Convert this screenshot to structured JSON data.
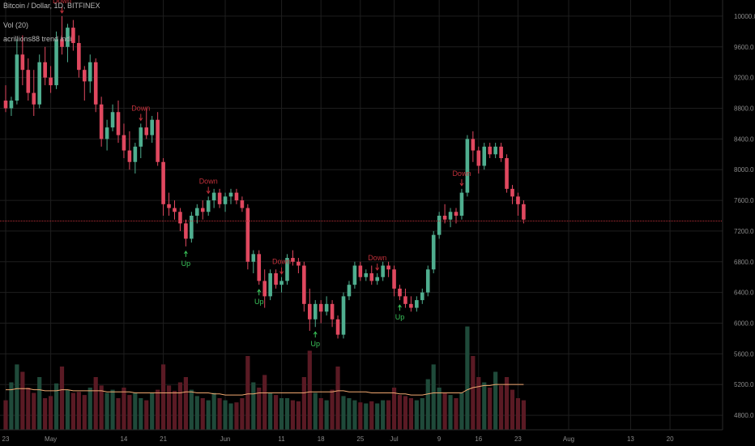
{
  "header": {
    "title": "Bitcoin / Dollar, 1D, BITFINEX",
    "vol_label": "Vol (20)",
    "indicator_label": "acrillions88 trend indi"
  },
  "colors": {
    "background": "#000000",
    "grid": "#1e1e1e",
    "up": "#4fae8f",
    "down": "#e0485f",
    "up_volume": "#1f4a3a",
    "down_volume": "#5a1a24",
    "vol_ma": "#f0a870",
    "price_line": "#c0303a",
    "signal_down": "#c0303a",
    "signal_up": "#3ac35a"
  },
  "chart_data": {
    "type": "candlestick",
    "symbol": "Bitcoin / Dollar",
    "interval": "1D",
    "exchange": "BITFINEX",
    "ylim": [
      4600,
      10200
    ],
    "y_ticks": [
      "10000.0",
      "9600.0",
      "9200.0",
      "8800.0",
      "8400.0",
      "8000.0",
      "7600.0",
      "7200.0",
      "6800.0",
      "6400.0",
      "6000.0",
      "5600.0",
      "5200.0",
      "4800.0"
    ],
    "x_ticks": [
      {
        "label": "23",
        "index": 0
      },
      {
        "label": "May",
        "index": 8
      },
      {
        "label": "14",
        "index": 21
      },
      {
        "label": "21",
        "index": 28
      },
      {
        "label": "Jun",
        "index": 39
      },
      {
        "label": "11",
        "index": 49
      },
      {
        "label": "18",
        "index": 56
      },
      {
        "label": "25",
        "index": 63
      },
      {
        "label": "Jul",
        "index": 69
      },
      {
        "label": "9",
        "index": 77
      },
      {
        "label": "16",
        "index": 84
      },
      {
        "label": "23",
        "index": 91
      },
      {
        "label": "Aug",
        "index": 100
      },
      {
        "label": "13",
        "index": 111
      },
      {
        "label": "20",
        "index": 118
      }
    ],
    "current_price_line": 7330,
    "candles": [
      [
        8900,
        9100,
        8750,
        8800
      ],
      [
        8800,
        8950,
        8700,
        8900
      ],
      [
        8900,
        9700,
        8850,
        9500
      ],
      [
        9500,
        9750,
        9100,
        9300
      ],
      [
        9300,
        9450,
        8900,
        9000
      ],
      [
        9000,
        9300,
        8700,
        8850
      ],
      [
        8850,
        9500,
        8800,
        9400
      ],
      [
        9400,
        9600,
        9100,
        9200
      ],
      [
        9200,
        9350,
        9000,
        9100
      ],
      [
        9100,
        9800,
        9050,
        9700
      ],
      [
        9700,
        10000,
        9500,
        9600
      ],
      [
        9600,
        9900,
        9400,
        9850
      ],
      [
        9850,
        9950,
        9550,
        9650
      ],
      [
        9650,
        9750,
        9200,
        9300
      ],
      [
        9300,
        9350,
        8900,
        9150
      ],
      [
        9150,
        9500,
        9000,
        9400
      ],
      [
        9400,
        9450,
        8750,
        8850
      ],
      [
        8850,
        8950,
        8300,
        8400
      ],
      [
        8400,
        8650,
        8250,
        8550
      ],
      [
        8550,
        8850,
        8500,
        8750
      ],
      [
        8750,
        8900,
        8350,
        8450
      ],
      [
        8450,
        8600,
        8150,
        8250
      ],
      [
        8250,
        8500,
        8000,
        8100
      ],
      [
        8100,
        8350,
        7950,
        8300
      ],
      [
        8300,
        8600,
        8150,
        8550
      ],
      [
        8550,
        8800,
        8400,
        8450
      ],
      [
        8450,
        8700,
        8350,
        8650
      ],
      [
        8650,
        8750,
        8050,
        8100
      ],
      [
        8100,
        8150,
        7400,
        7550
      ],
      [
        7550,
        7700,
        7400,
        7500
      ],
      [
        7500,
        7600,
        7350,
        7450
      ],
      [
        7450,
        7500,
        7200,
        7300
      ],
      [
        7300,
        7350,
        7000,
        7100
      ],
      [
        7100,
        7450,
        7050,
        7400
      ],
      [
        7400,
        7550,
        7300,
        7500
      ],
      [
        7500,
        7600,
        7350,
        7450
      ],
      [
        7450,
        7650,
        7400,
        7600
      ],
      [
        7600,
        7750,
        7500,
        7700
      ],
      [
        7700,
        7750,
        7500,
        7550
      ],
      [
        7550,
        7700,
        7450,
        7650
      ],
      [
        7650,
        7750,
        7550,
        7700
      ],
      [
        7700,
        7750,
        7550,
        7600
      ],
      [
        7600,
        7650,
        7450,
        7500
      ],
      [
        7500,
        7550,
        6700,
        6800
      ],
      [
        6800,
        6950,
        6650,
        6900
      ],
      [
        6900,
        6950,
        6500,
        6550
      ],
      [
        6550,
        6700,
        6200,
        6350
      ],
      [
        6350,
        6700,
        6300,
        6650
      ],
      [
        6650,
        6700,
        6450,
        6500
      ],
      [
        6500,
        6600,
        6400,
        6550
      ],
      [
        6550,
        6900,
        6500,
        6850
      ],
      [
        6850,
        6950,
        6750,
        6800
      ],
      [
        6800,
        6850,
        6650,
        6750
      ],
      [
        6750,
        6800,
        6150,
        6250
      ],
      [
        6250,
        6450,
        5900,
        6050
      ],
      [
        6050,
        6300,
        5950,
        6250
      ],
      [
        6250,
        6300,
        6000,
        6150
      ],
      [
        6150,
        6350,
        6100,
        6250
      ],
      [
        6250,
        6300,
        5950,
        6050
      ],
      [
        6050,
        6100,
        5800,
        5850
      ],
      [
        5850,
        6400,
        5800,
        6350
      ],
      [
        6350,
        6550,
        6300,
        6500
      ],
      [
        6500,
        6800,
        6450,
        6750
      ],
      [
        6750,
        6800,
        6550,
        6600
      ],
      [
        6600,
        6700,
        6550,
        6650
      ],
      [
        6650,
        6750,
        6500,
        6550
      ],
      [
        6550,
        6650,
        6500,
        6600
      ],
      [
        6600,
        6800,
        6550,
        6750
      ],
      [
        6750,
        6800,
        6600,
        6700
      ],
      [
        6700,
        6750,
        6350,
        6450
      ],
      [
        6450,
        6500,
        6300,
        6350
      ],
      [
        6350,
        6450,
        6200,
        6250
      ],
      [
        6250,
        6350,
        6150,
        6200
      ],
      [
        6200,
        6350,
        6150,
        6300
      ],
      [
        6300,
        6450,
        6250,
        6400
      ],
      [
        6400,
        6750,
        6350,
        6700
      ],
      [
        6700,
        7200,
        6650,
        7150
      ],
      [
        7150,
        7450,
        7100,
        7400
      ],
      [
        7400,
        7550,
        7300,
        7350
      ],
      [
        7350,
        7500,
        7250,
        7450
      ],
      [
        7450,
        7500,
        7300,
        7400
      ],
      [
        7400,
        7750,
        7350,
        7700
      ],
      [
        7700,
        8450,
        7650,
        8400
      ],
      [
        8400,
        8500,
        8100,
        8250
      ],
      [
        8250,
        8300,
        7950,
        8050
      ],
      [
        8050,
        8350,
        8000,
        8300
      ],
      [
        8300,
        8350,
        8150,
        8200
      ],
      [
        8200,
        8350,
        8150,
        8300
      ],
      [
        8300,
        8350,
        8100,
        8150
      ],
      [
        8150,
        8200,
        7700,
        7750
      ],
      [
        7750,
        7800,
        7550,
        7650
      ],
      [
        7650,
        7700,
        7400,
        7550
      ],
      [
        7550,
        7600,
        7300,
        7350
      ]
    ],
    "volume_ratio": [
      0.28,
      0.45,
      0.62,
      0.55,
      0.4,
      0.35,
      0.5,
      0.3,
      0.32,
      0.44,
      0.6,
      0.38,
      0.35,
      0.36,
      0.33,
      0.4,
      0.5,
      0.42,
      0.35,
      0.38,
      0.3,
      0.4,
      0.33,
      0.35,
      0.3,
      0.28,
      0.35,
      0.38,
      0.62,
      0.42,
      0.37,
      0.45,
      0.5,
      0.38,
      0.32,
      0.3,
      0.28,
      0.35,
      0.3,
      0.28,
      0.25,
      0.26,
      0.3,
      0.7,
      0.45,
      0.4,
      0.52,
      0.35,
      0.33,
      0.3,
      0.3,
      0.28,
      0.27,
      0.5,
      0.75,
      0.35,
      0.3,
      0.28,
      0.38,
      0.6,
      0.32,
      0.3,
      0.28,
      0.26,
      0.25,
      0.27,
      0.25,
      0.28,
      0.28,
      0.4,
      0.33,
      0.32,
      0.3,
      0.28,
      0.3,
      0.48,
      0.62,
      0.4,
      0.35,
      0.33,
      0.3,
      0.35,
      0.98,
      0.7,
      0.5,
      0.45,
      0.4,
      0.55,
      0.42,
      0.5,
      0.38,
      0.3,
      0.28
    ],
    "volume_ma_ratio": [
      0.38,
      0.38,
      0.39,
      0.39,
      0.39,
      0.38,
      0.38,
      0.37,
      0.37,
      0.37,
      0.38,
      0.38,
      0.37,
      0.37,
      0.37,
      0.37,
      0.37,
      0.37,
      0.36,
      0.36,
      0.36,
      0.36,
      0.36,
      0.35,
      0.35,
      0.35,
      0.35,
      0.35,
      0.35,
      0.35,
      0.35,
      0.35,
      0.36,
      0.36,
      0.35,
      0.35,
      0.35,
      0.34,
      0.34,
      0.33,
      0.33,
      0.33,
      0.33,
      0.34,
      0.34,
      0.35,
      0.35,
      0.35,
      0.35,
      0.35,
      0.35,
      0.35,
      0.35,
      0.35,
      0.36,
      0.36,
      0.36,
      0.36,
      0.36,
      0.37,
      0.37,
      0.36,
      0.36,
      0.36,
      0.36,
      0.35,
      0.35,
      0.35,
      0.35,
      0.35,
      0.34,
      0.34,
      0.33,
      0.33,
      0.33,
      0.34,
      0.35,
      0.35,
      0.35,
      0.35,
      0.35,
      0.35,
      0.38,
      0.4,
      0.41,
      0.42,
      0.42,
      0.43,
      0.43,
      0.43,
      0.43,
      0.43,
      0.43
    ],
    "signals": [
      {
        "type": "down",
        "index": 10,
        "label": "Down"
      },
      {
        "type": "down",
        "index": 24,
        "label": "Down"
      },
      {
        "type": "down",
        "index": 36,
        "label": "Down"
      },
      {
        "type": "up",
        "index": 32,
        "label": "Up"
      },
      {
        "type": "down",
        "index": 49,
        "label": "Down"
      },
      {
        "type": "up",
        "index": 45,
        "label": "Up"
      },
      {
        "type": "up",
        "index": 55,
        "label": "Up"
      },
      {
        "type": "down",
        "index": 66,
        "label": "Down"
      },
      {
        "type": "up",
        "index": 70,
        "label": "Up"
      },
      {
        "type": "down",
        "index": 81,
        "label": "Down"
      }
    ]
  }
}
